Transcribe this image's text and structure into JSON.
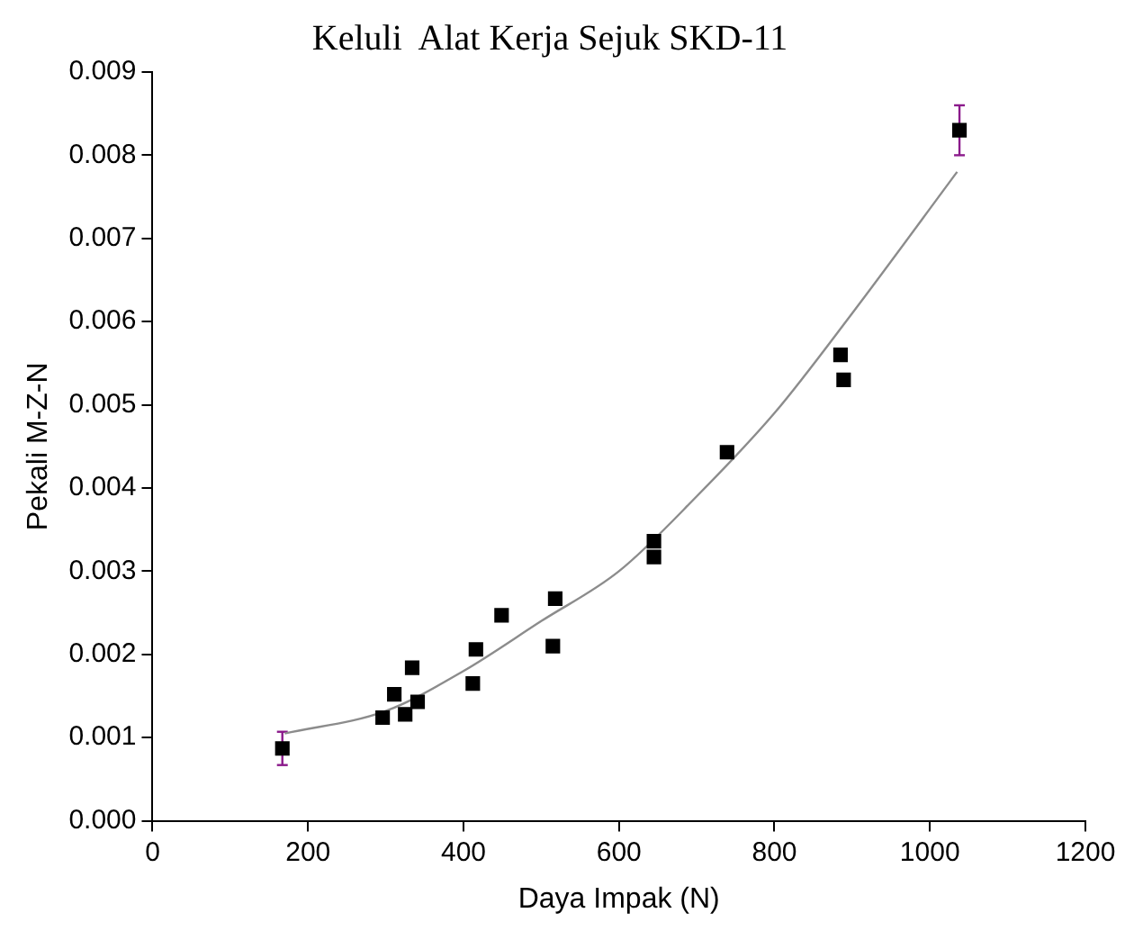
{
  "chart_data": {
    "type": "scatter",
    "title": "Keluli  Alat Kerja Sejuk SKD-11",
    "xlabel": "Daya Impak (N)",
    "ylabel": "Pekali M-Z-N",
    "xlim": [
      0,
      1200
    ],
    "xticks": [
      0,
      200,
      400,
      600,
      800,
      1000,
      1200
    ],
    "ylim": [
      0,
      0.009
    ],
    "yticks": [
      {
        "value": 0,
        "label": "0.000"
      },
      {
        "value": 0.001,
        "label": "0.001"
      },
      {
        "value": 0.002,
        "label": "0.002"
      },
      {
        "value": 0.003,
        "label": "0.003"
      },
      {
        "value": 0.004,
        "label": "0.004"
      },
      {
        "value": 0.005,
        "label": "0.005"
      },
      {
        "value": 0.006,
        "label": "0.006"
      },
      {
        "value": 0.007,
        "label": "0.007"
      },
      {
        "value": 0.008,
        "label": "0.008"
      },
      {
        "value": 0.009,
        "label": "0.009"
      }
    ],
    "grid": false,
    "legend": false,
    "marker": "square",
    "series": [
      {
        "color": "#000000",
        "x": [
          167,
          296,
          311,
          325,
          334,
          341,
          412,
          416,
          449,
          515,
          518,
          645,
          645,
          739,
          885,
          889,
          1038
        ],
        "values": [
          0.00087,
          0.00124,
          0.00152,
          0.00128,
          0.00184,
          0.00143,
          0.00165,
          0.00206,
          0.00247,
          0.0021,
          0.00267,
          0.00317,
          0.00336,
          0.00443,
          0.0056,
          0.0053,
          0.0083
        ],
        "errors": [
          0.0002,
          null,
          null,
          null,
          null,
          null,
          null,
          null,
          null,
          null,
          null,
          null,
          null,
          null,
          null,
          null,
          0.0003
        ]
      },
      {
        "type": "line",
        "color": "#8c8c8c",
        "marker": "none",
        "x": [
          170,
          300,
          400,
          500,
          600,
          700,
          800,
          900,
          1035
        ],
        "values": [
          0.00105,
          0.00132,
          0.0018,
          0.0024,
          0.003,
          0.0039,
          0.0049,
          0.0061,
          0.0078
        ]
      }
    ]
  }
}
